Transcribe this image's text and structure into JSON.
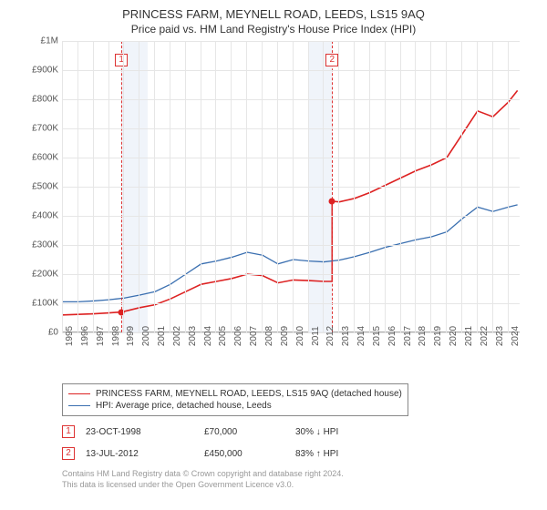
{
  "title": "PRINCESS FARM, MEYNELL ROAD, LEEDS, LS15 9AQ",
  "subtitle": "Price paid vs. HM Land Registry's House Price Index (HPI)",
  "chart": {
    "type": "line",
    "ylim": [
      0,
      1000000
    ],
    "ytick_step": 100000,
    "ytick_labels": [
      "£0",
      "£100K",
      "£200K",
      "£300K",
      "£400K",
      "£500K",
      "£600K",
      "£700K",
      "£800K",
      "£900K",
      "£1M"
    ],
    "x_years": [
      1995,
      1996,
      1997,
      1998,
      1999,
      2000,
      2001,
      2002,
      2003,
      2004,
      2005,
      2006,
      2007,
      2008,
      2009,
      2010,
      2011,
      2012,
      2013,
      2014,
      2015,
      2016,
      2017,
      2018,
      2019,
      2020,
      2021,
      2022,
      2023,
      2024
    ],
    "grid_color": "#e6e6e6",
    "background_color": "#ffffff",
    "shade_color": "#eef3f9",
    "shade_ranges": [
      [
        1998.8,
        2000.5
      ],
      [
        2011.0,
        2012.5
      ]
    ],
    "axis_label_fontsize": 10,
    "title_fontsize": 13,
    "series": [
      {
        "name": "PRINCESS FARM, MEYNELL ROAD, LEEDS, LS15 9AQ (detached house)",
        "color": "#d22",
        "width": 1.6,
        "data": [
          [
            1995,
            60000
          ],
          [
            1996,
            62000
          ],
          [
            1997,
            64000
          ],
          [
            1998,
            67000
          ],
          [
            1998.8,
            70000
          ],
          [
            1999,
            72000
          ],
          [
            2000,
            85000
          ],
          [
            2001,
            95000
          ],
          [
            2002,
            115000
          ],
          [
            2003,
            140000
          ],
          [
            2004,
            165000
          ],
          [
            2005,
            175000
          ],
          [
            2006,
            185000
          ],
          [
            2007,
            200000
          ],
          [
            2008,
            195000
          ],
          [
            2009,
            170000
          ],
          [
            2010,
            180000
          ],
          [
            2011,
            178000
          ],
          [
            2012,
            175000
          ],
          [
            2012.53,
            175000
          ],
          [
            2012.53,
            450000
          ],
          [
            2013,
            448000
          ],
          [
            2014,
            460000
          ],
          [
            2015,
            480000
          ],
          [
            2016,
            505000
          ],
          [
            2017,
            530000
          ],
          [
            2018,
            555000
          ],
          [
            2019,
            575000
          ],
          [
            2020,
            600000
          ],
          [
            2021,
            680000
          ],
          [
            2022,
            760000
          ],
          [
            2023,
            740000
          ],
          [
            2024,
            790000
          ],
          [
            2024.6,
            830000
          ]
        ]
      },
      {
        "name": "HPI: Average price, detached house, Leeds",
        "color": "#3a6fb0",
        "width": 1.3,
        "data": [
          [
            1995,
            105000
          ],
          [
            1996,
            105000
          ],
          [
            1997,
            108000
          ],
          [
            1998,
            112000
          ],
          [
            1999,
            118000
          ],
          [
            2000,
            128000
          ],
          [
            2001,
            140000
          ],
          [
            2002,
            165000
          ],
          [
            2003,
            200000
          ],
          [
            2004,
            235000
          ],
          [
            2005,
            245000
          ],
          [
            2006,
            258000
          ],
          [
            2007,
            275000
          ],
          [
            2008,
            265000
          ],
          [
            2009,
            235000
          ],
          [
            2010,
            250000
          ],
          [
            2011,
            245000
          ],
          [
            2012,
            242000
          ],
          [
            2013,
            248000
          ],
          [
            2014,
            260000
          ],
          [
            2015,
            275000
          ],
          [
            2016,
            292000
          ],
          [
            2017,
            305000
          ],
          [
            2018,
            318000
          ],
          [
            2019,
            328000
          ],
          [
            2020,
            345000
          ],
          [
            2021,
            390000
          ],
          [
            2022,
            430000
          ],
          [
            2023,
            415000
          ],
          [
            2024,
            430000
          ],
          [
            2024.6,
            438000
          ]
        ]
      }
    ],
    "markers": [
      {
        "idx": "1",
        "year": 1998.81,
        "y": 70000,
        "dot_color": "#d22"
      },
      {
        "idx": "2",
        "year": 2012.53,
        "y": 450000,
        "dot_color": "#d22"
      }
    ]
  },
  "legend": {
    "border_color": "#888",
    "items": [
      {
        "color": "#d22",
        "width": 1.6,
        "label": "PRINCESS FARM, MEYNELL ROAD, LEEDS, LS15 9AQ (detached house)"
      },
      {
        "color": "#3a6fb0",
        "width": 1.3,
        "label": "HPI: Average price, detached house, Leeds"
      }
    ]
  },
  "sales": [
    {
      "idx": "1",
      "date": "23-OCT-1998",
      "price": "£70,000",
      "delta": "30% ↓ HPI"
    },
    {
      "idx": "2",
      "date": "13-JUL-2012",
      "price": "£450,000",
      "delta": "83% ↑ HPI"
    }
  ],
  "footnote_line1": "Contains HM Land Registry data © Crown copyright and database right 2024.",
  "footnote_line2": "This data is licensed under the Open Government Licence v3.0."
}
